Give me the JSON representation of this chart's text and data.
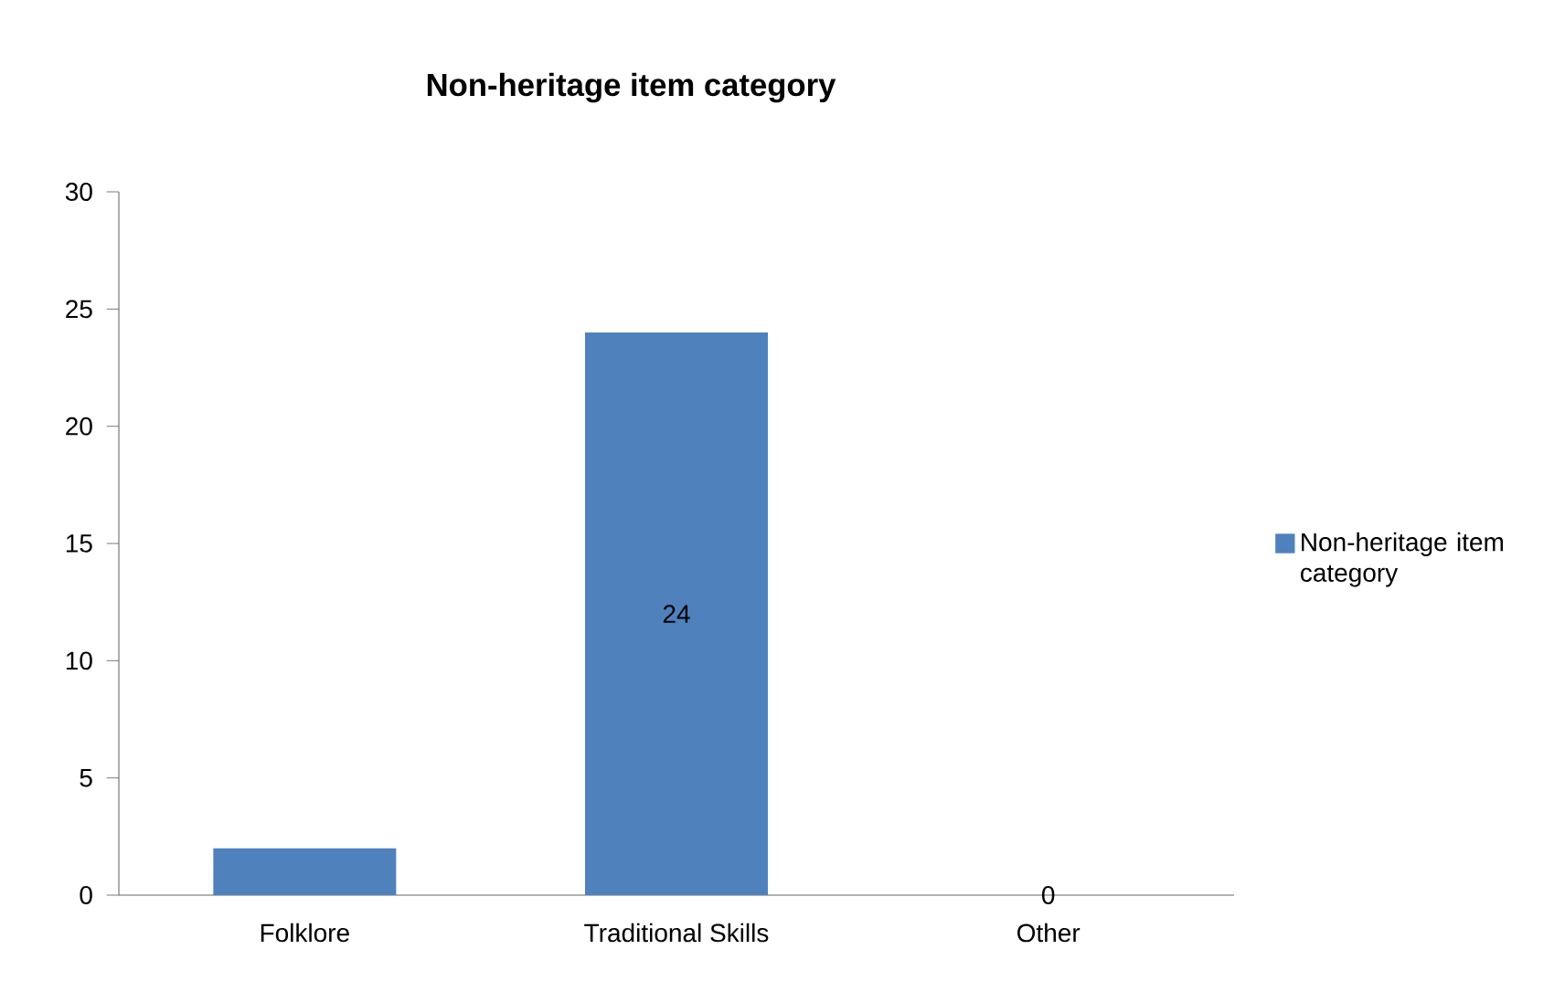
{
  "chart_data": {
    "type": "bar",
    "title": "Non-heritage item category",
    "categories": [
      "Folklore",
      "Traditional Skills",
      "Other"
    ],
    "series": [
      {
        "name": "Non-heritage item category",
        "color": "#4f81bd",
        "values": [
          2,
          24,
          0
        ],
        "value_labels": [
          null,
          "24",
          "0"
        ]
      }
    ],
    "ylim": [
      0,
      30
    ],
    "yticks": [
      0,
      5,
      10,
      15,
      20,
      25,
      30
    ],
    "legend": "right"
  }
}
